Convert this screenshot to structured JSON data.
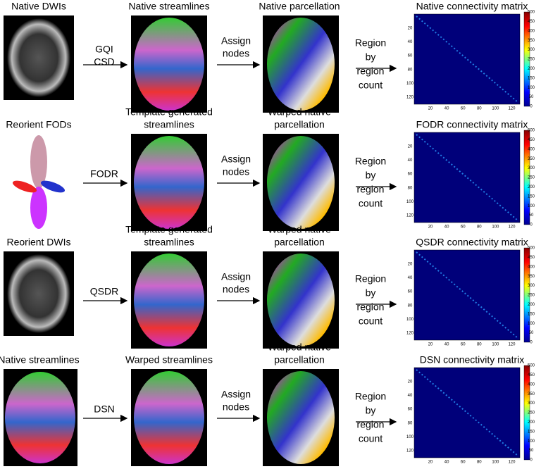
{
  "rows": [
    {
      "input_label": "Native DWIs",
      "method": [
        "GQI",
        "CSD"
      ],
      "streamline_label": [
        "Native streamlines"
      ],
      "assign": [
        "Assign",
        "nodes"
      ],
      "parcellation_label": [
        "Native parcellation"
      ],
      "count": [
        "Region",
        "by",
        "region",
        "count"
      ],
      "matrix_title": "Native connectivity matrix"
    },
    {
      "input_label": "Reorient FODs",
      "method": [
        "FODR"
      ],
      "streamline_label": [
        "Template generated",
        "streamlines"
      ],
      "assign": [
        "Assign",
        "nodes"
      ],
      "parcellation_label": [
        "Warped native",
        "parcellation"
      ],
      "count": [
        "Region",
        "by",
        "region",
        "count"
      ],
      "matrix_title": "FODR connectivity matrix"
    },
    {
      "input_label": "Reorient DWIs",
      "method": [
        "QSDR"
      ],
      "streamline_label": [
        "Template generated",
        "streamlines"
      ],
      "assign": [
        "Assign",
        "nodes"
      ],
      "parcellation_label": [
        "Warped native",
        "parcellation"
      ],
      "count": [
        "Region",
        "by",
        "region",
        "count"
      ],
      "matrix_title": "QSDR connectivity matrix"
    },
    {
      "input_label": "Native streamlines",
      "method": [
        "DSN"
      ],
      "streamline_label": [
        "Warped streamlines"
      ],
      "assign": [
        "Assign",
        "nodes"
      ],
      "parcellation_label": [
        "Warped native",
        "parcellation"
      ],
      "count": [
        "Region",
        "by",
        "region",
        "count"
      ],
      "matrix_title": "DSN connectivity matrix"
    }
  ],
  "matrix_axis": {
    "row_ticks": [
      20,
      40,
      60,
      80,
      100,
      120
    ],
    "column_ticks": [
      20,
      40,
      60,
      80,
      100,
      120
    ],
    "colorbar_ticks": [
      0,
      50,
      100,
      150,
      200,
      250,
      300,
      350,
      400,
      450,
      500
    ]
  }
}
